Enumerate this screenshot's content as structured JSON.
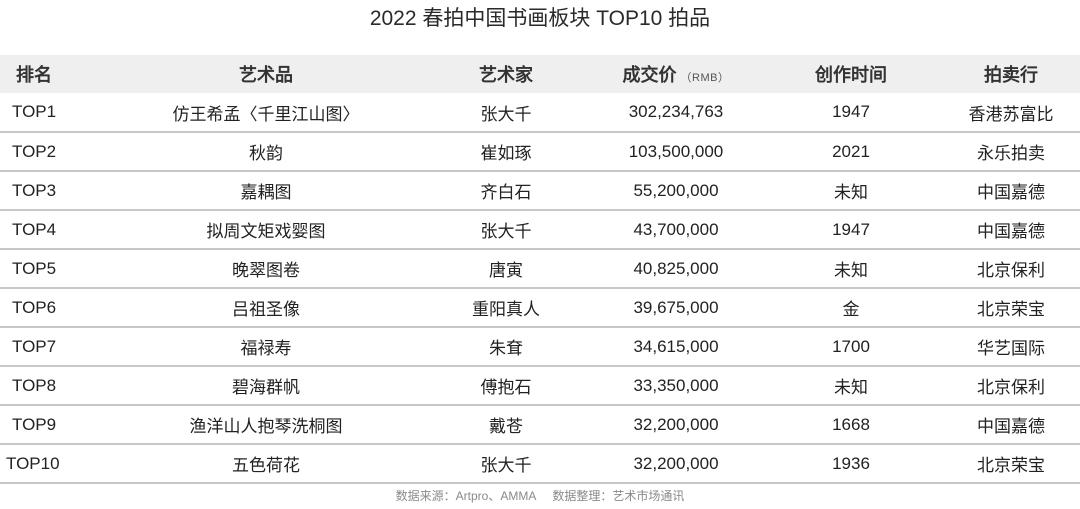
{
  "title": "2022 春拍中国书画板块 TOP10 拍品",
  "table": {
    "headers": {
      "rank": "排名",
      "artwork": "艺术品",
      "artist": "艺术家",
      "price": "成交价",
      "price_unit": "（RMB）",
      "year": "创作时间",
      "auction_house": "拍卖行"
    },
    "rows": [
      {
        "rank": "TOP1",
        "artwork": "仿王希孟〈千里江山图〉",
        "artist": "张大千",
        "price": "302,234,763",
        "year": "1947",
        "auction_house": "香港苏富比"
      },
      {
        "rank": "TOP2",
        "artwork": "秋韵",
        "artist": "崔如琢",
        "price": "103,500,000",
        "year": "2021",
        "auction_house": "永乐拍卖"
      },
      {
        "rank": "TOP3",
        "artwork": "嘉耦图",
        "artist": "齐白石",
        "price": "55,200,000",
        "year": "未知",
        "auction_house": "中国嘉德"
      },
      {
        "rank": "TOP4",
        "artwork": "拟周文矩戏婴图",
        "artist": "张大千",
        "price": "43,700,000",
        "year": "1947",
        "auction_house": "中国嘉德"
      },
      {
        "rank": "TOP5",
        "artwork": "晚翠图卷",
        "artist": "唐寅",
        "price": "40,825,000",
        "year": "未知",
        "auction_house": "北京保利"
      },
      {
        "rank": "TOP6",
        "artwork": "吕祖圣像",
        "artist": "重阳真人",
        "price": "39,675,000",
        "year": "金",
        "auction_house": "北京荣宝"
      },
      {
        "rank": "TOP7",
        "artwork": "福禄寿",
        "artist": "朱耷",
        "price": "34,615,000",
        "year": "1700",
        "auction_house": "华艺国际"
      },
      {
        "rank": "TOP8",
        "artwork": "碧海群帆",
        "artist": "傅抱石",
        "price": "33,350,000",
        "year": "未知",
        "auction_house": "北京保利"
      },
      {
        "rank": "TOP9",
        "artwork": "渔洋山人抱琴洗桐图",
        "artist": "戴苍",
        "price": "32,200,000",
        "year": "1668",
        "auction_house": "中国嘉德"
      },
      {
        "rank": "TOP10",
        "artwork": "五色荷花",
        "artist": "张大千",
        "price": "32,200,000",
        "year": "1936",
        "auction_house": "北京荣宝"
      }
    ]
  },
  "footer": {
    "source": "数据来源：Artpro、AMMA",
    "compiled_by": "数据整理：艺术市场通讯"
  },
  "colors": {
    "header_bg": "#efefef",
    "row_divider": "#c8c8c8",
    "footer_text": "#8a8a8a"
  }
}
